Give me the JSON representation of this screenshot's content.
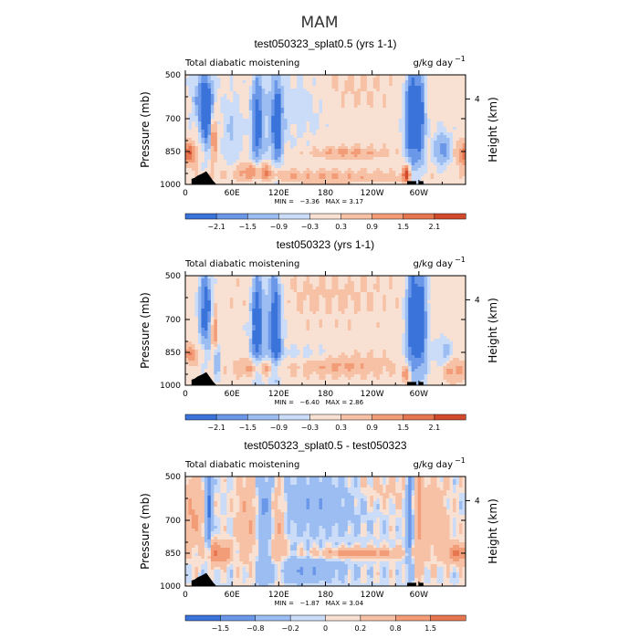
{
  "figure_title": "MAM",
  "colors": [
    "#08306b",
    "#1d4ea3",
    "#3a73d9",
    "#6a97e8",
    "#9cbdf2",
    "#cbdcf8",
    "#f8e0d2",
    "#f7c1a6",
    "#f29d78",
    "#e6764f",
    "#d24a2b",
    "#b02a17",
    "#7a0f0b"
  ],
  "chart_data": [
    {
      "type": "heatmap",
      "title": "test050323_splat0.5 (yrs 1-1)",
      "left_label": "Total diabatic moistening",
      "right_label": "g/kg day",
      "right_label_exp": "−1",
      "ylabel": "Pressure (mb)",
      "ylabel_right": "Height (km)",
      "yticks": [
        "500",
        "700",
        "850",
        "1000"
      ],
      "ylim": [
        1000,
        500
      ],
      "height_ticks": [
        "4"
      ],
      "xticks": [
        "0",
        "60E",
        "120E",
        "180",
        "120W",
        "60W"
      ],
      "xlim": [
        0,
        360
      ],
      "min_label": "MIN =",
      "min_value": "−3.36",
      "max_label": "MAX =",
      "max_value": "3.17",
      "colorbar_labels": [
        "−2.1",
        "−1.5",
        "−0.9",
        "−0.3",
        "0.3",
        "0.9",
        "1.5",
        "2.1"
      ],
      "colorbar_levels": [
        -2.1,
        -1.5,
        -0.9,
        -0.3,
        0.3,
        0.9,
        1.5,
        2.1
      ],
      "features": [
        {
          "lon": 28,
          "p": 690,
          "amp": -2.8,
          "wlon": 6,
          "wp": 110
        },
        {
          "lon": 22,
          "p": 600,
          "amp": -1.6,
          "wlon": 10,
          "wp": 90
        },
        {
          "lon": 36,
          "p": 770,
          "amp": 2.4,
          "wlon": 3,
          "wp": 80
        },
        {
          "lon": 5,
          "p": 860,
          "amp": 2.0,
          "wlon": 8,
          "wp": 35
        },
        {
          "lon": 60,
          "p": 760,
          "amp": -1.0,
          "wlon": 8,
          "wp": 120
        },
        {
          "lon": 92,
          "p": 720,
          "amp": -2.4,
          "wlon": 5,
          "wp": 160
        },
        {
          "lon": 118,
          "p": 720,
          "amp": -2.2,
          "wlon": 5,
          "wp": 160
        },
        {
          "lon": 108,
          "p": 700,
          "amp": -0.8,
          "wlon": 14,
          "wp": 180
        },
        {
          "lon": 95,
          "p": 935,
          "amp": 1.6,
          "wlon": 20,
          "wp": 28
        },
        {
          "lon": 210,
          "p": 855,
          "amp": 1.1,
          "wlon": 35,
          "wp": 20
        },
        {
          "lon": 150,
          "p": 650,
          "amp": -0.6,
          "wlon": 20,
          "wp": 110
        },
        {
          "lon": 215,
          "p": 560,
          "amp": 0.35,
          "wlon": 40,
          "wp": 70
        },
        {
          "lon": 290,
          "p": 700,
          "amp": -3.0,
          "wlon": 6,
          "wp": 180
        },
        {
          "lon": 302,
          "p": 680,
          "amp": -2.4,
          "wlon": 5,
          "wp": 180
        },
        {
          "lon": 285,
          "p": 950,
          "amp": 2.5,
          "wlon": 4,
          "wp": 35
        },
        {
          "lon": 330,
          "p": 840,
          "amp": -1.8,
          "wlon": 8,
          "wp": 60
        },
        {
          "lon": 360,
          "p": 860,
          "amp": 2.0,
          "wlon": 8,
          "wp": 40
        },
        {
          "lon": 180,
          "p": 965,
          "amp": 0.9,
          "wlon": 90,
          "wp": 20
        }
      ]
    },
    {
      "type": "heatmap",
      "title": "test050323 (yrs 1-1)",
      "left_label": "Total diabatic moistening",
      "right_label": "g/kg day",
      "right_label_exp": "−1",
      "ylabel": "Pressure (mb)",
      "ylabel_right": "Height (km)",
      "yticks": [
        "500",
        "700",
        "850",
        "1000"
      ],
      "ylim": [
        1000,
        500
      ],
      "height_ticks": [
        "4"
      ],
      "xticks": [
        "0",
        "60E",
        "120E",
        "180",
        "120W",
        "60W"
      ],
      "xlim": [
        0,
        360
      ],
      "min_label": "MIN =",
      "min_value": "−6.40",
      "max_label": "MAX =",
      "max_value": "2.86",
      "colorbar_labels": [
        "−2.1",
        "−1.5",
        "−0.9",
        "−0.3",
        "0.3",
        "0.9",
        "1.5",
        "2.1"
      ],
      "colorbar_levels": [
        -2.1,
        -1.5,
        -0.9,
        -0.3,
        0.3,
        0.9,
        1.5,
        2.1
      ],
      "features": [
        {
          "lon": 26,
          "p": 650,
          "amp": -2.8,
          "wlon": 6,
          "wp": 130
        },
        {
          "lon": 38,
          "p": 780,
          "amp": 2.2,
          "wlon": 3,
          "wp": 80
        },
        {
          "lon": 40,
          "p": 870,
          "amp": -2.5,
          "wlon": 3,
          "wp": 60
        },
        {
          "lon": 8,
          "p": 860,
          "amp": 1.4,
          "wlon": 8,
          "wp": 30
        },
        {
          "lon": 92,
          "p": 720,
          "amp": -2.6,
          "wlon": 5,
          "wp": 170
        },
        {
          "lon": 116,
          "p": 720,
          "amp": -2.6,
          "wlon": 5,
          "wp": 170
        },
        {
          "lon": 106,
          "p": 700,
          "amp": -1.0,
          "wlon": 14,
          "wp": 190
        },
        {
          "lon": 95,
          "p": 920,
          "amp": 1.6,
          "wlon": 20,
          "wp": 30
        },
        {
          "lon": 150,
          "p": 860,
          "amp": -0.6,
          "wlon": 30,
          "wp": 30
        },
        {
          "lon": 200,
          "p": 910,
          "amp": 1.0,
          "wlon": 45,
          "wp": 35
        },
        {
          "lon": 180,
          "p": 600,
          "amp": 0.4,
          "wlon": 80,
          "wp": 80
        },
        {
          "lon": 292,
          "p": 700,
          "amp": -3.2,
          "wlon": 6,
          "wp": 190
        },
        {
          "lon": 304,
          "p": 690,
          "amp": -2.6,
          "wlon": 5,
          "wp": 190
        },
        {
          "lon": 332,
          "p": 850,
          "amp": -1.2,
          "wlon": 9,
          "wp": 45
        },
        {
          "lon": 345,
          "p": 930,
          "amp": 1.2,
          "wlon": 10,
          "wp": 40
        },
        {
          "lon": 285,
          "p": 955,
          "amp": 1.8,
          "wlon": 4,
          "wp": 30
        }
      ]
    },
    {
      "type": "heatmap",
      "title": "test050323_splat0.5 - test050323",
      "left_label": "Total diabatic moistening",
      "right_label": "g/kg day",
      "right_label_exp": "−1",
      "ylabel": "Pressure (mb)",
      "ylabel_right": "Height (km)",
      "yticks": [
        "500",
        "700",
        "850",
        "1000"
      ],
      "ylim": [
        1000,
        500
      ],
      "height_ticks": [
        "4"
      ],
      "xticks": [
        "0",
        "60E",
        "120E",
        "180",
        "120W",
        "60W"
      ],
      "xlim": [
        0,
        360
      ],
      "min_label": "MIN =",
      "min_value": "−1.87",
      "max_label": "MAX =",
      "max_value": "3.04",
      "colorbar_labels": [
        "−1.5",
        "−0.8",
        "−0.2",
        "0",
        "0.2",
        "0.8",
        "1.5"
      ],
      "colorbar_levels": [
        -1.5,
        -0.8,
        -0.2,
        0,
        0.2,
        0.8,
        1.5
      ],
      "features": [
        {
          "lon": 30,
          "p": 650,
          "amp": -1.8,
          "wlon": 3,
          "wp": 150
        },
        {
          "lon": 12,
          "p": 650,
          "amp": 0.9,
          "wlon": 10,
          "wp": 120
        },
        {
          "lon": 35,
          "p": 850,
          "amp": 1.5,
          "wlon": 5,
          "wp": 40
        },
        {
          "lon": 50,
          "p": 850,
          "amp": 1.6,
          "wlon": 6,
          "wp": 30
        },
        {
          "lon": 80,
          "p": 700,
          "amp": 0.8,
          "wlon": 10,
          "wp": 150
        },
        {
          "lon": 100,
          "p": 720,
          "amp": -0.8,
          "wlon": 6,
          "wp": 180
        },
        {
          "lon": 120,
          "p": 720,
          "amp": 0.8,
          "wlon": 6,
          "wp": 180
        },
        {
          "lon": 170,
          "p": 620,
          "amp": -0.7,
          "wlon": 40,
          "wp": 100
        },
        {
          "lon": 225,
          "p": 850,
          "amp": 1.3,
          "wlon": 40,
          "wp": 15
        },
        {
          "lon": 150,
          "p": 930,
          "amp": -0.7,
          "wlon": 40,
          "wp": 40
        },
        {
          "lon": 288,
          "p": 650,
          "amp": -1.4,
          "wlon": 3,
          "wp": 200
        },
        {
          "lon": 300,
          "p": 650,
          "amp": 0.9,
          "wlon": 4,
          "wp": 200
        },
        {
          "lon": 350,
          "p": 850,
          "amp": 1.5,
          "wlon": 10,
          "wp": 30
        },
        {
          "lon": 320,
          "p": 700,
          "amp": 0.6,
          "wlon": 12,
          "wp": 120
        },
        {
          "lon": 250,
          "p": 560,
          "amp": 0.3,
          "wlon": 40,
          "wp": 60
        }
      ]
    }
  ]
}
